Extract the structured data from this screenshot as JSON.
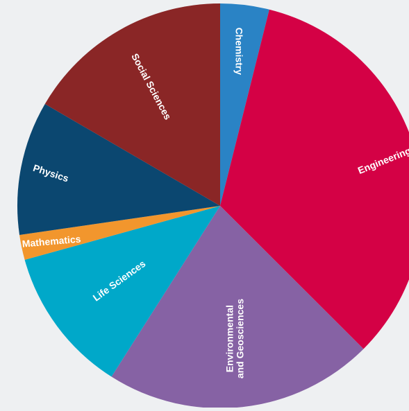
{
  "chart_data": {
    "type": "pie",
    "title": "",
    "legend": "none",
    "start": "top, clockwise",
    "slices": [
      {
        "label": "Chemistry",
        "value": 3.9,
        "color": "#2a83c5"
      },
      {
        "label": "Engineering",
        "value": 33.6,
        "color": "#d40145"
      },
      {
        "label": "Environmental and Geosciences",
        "value": 21.5,
        "color": "#8662a4"
      },
      {
        "label": "Life Sciences",
        "value": 11.7,
        "color": "#00a8c9"
      },
      {
        "label": "Mathematics",
        "value": 2.0,
        "color": "#f2962d"
      },
      {
        "label": "Physics",
        "value": 10.7,
        "color": "#0b4770"
      },
      {
        "label": "Social Sciences",
        "value": 16.6,
        "color": "#8a2626"
      }
    ],
    "label_lines": [
      [
        "Chemistry"
      ],
      [
        "Engineering"
      ],
      [
        "Environmental",
        "and Geosciences"
      ],
      [
        "Life Sciences"
      ],
      [
        "Mathematics"
      ],
      [
        "Physics"
      ],
      [
        "Social Sciences"
      ]
    ]
  },
  "background_color": "#eef0f2"
}
